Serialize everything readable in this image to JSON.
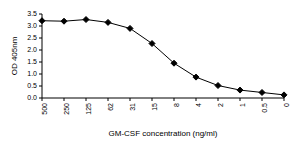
{
  "chart_data": {
    "type": "line",
    "x_label": "GM-CSF concentration (ng/ml)",
    "y_label": "OD 405nm",
    "categories": [
      "500",
      "250",
      "125",
      "62",
      "31",
      "15",
      "8",
      "4",
      "2",
      "1",
      "0.5",
      "0"
    ],
    "values": [
      3.22,
      3.2,
      3.27,
      3.15,
      2.9,
      2.27,
      1.45,
      0.87,
      0.52,
      0.33,
      0.23,
      0.13
    ],
    "color": "#000000",
    "marker": "diamond",
    "ylim": [
      0,
      3.5
    ],
    "yticks": [
      {
        "value": 0,
        "label": "0.0"
      },
      {
        "value": 0.5,
        "label": "0.5"
      },
      {
        "value": 1,
        "label": "1.0"
      },
      {
        "value": 1.5,
        "label": "1.5"
      },
      {
        "value": 2,
        "label": "2.0"
      },
      {
        "value": 2.5,
        "label": "2.5"
      },
      {
        "value": 3,
        "label": "3.0"
      },
      {
        "value": 3.5,
        "label": "3.5"
      }
    ],
    "grid": false
  }
}
